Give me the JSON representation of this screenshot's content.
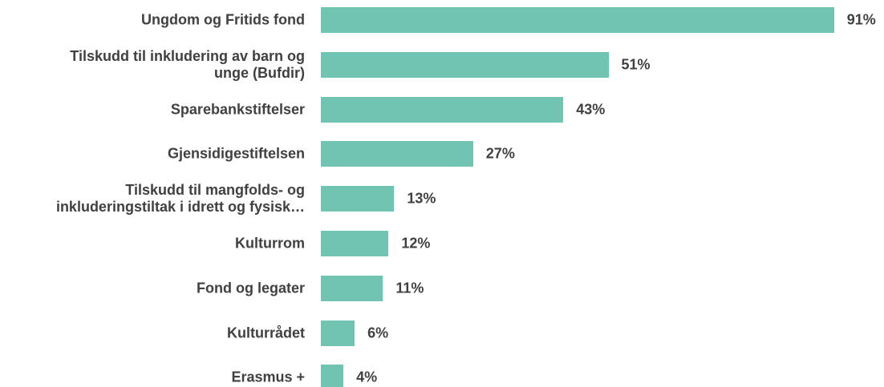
{
  "chart_data": {
    "type": "bar",
    "orientation": "horizontal",
    "color": "#72c4b2",
    "categories": [
      "Ungdom og Fritids fond",
      "Tilskudd til inkludering av barn og\nunge (Bufdir)",
      "Sparebankstiftelser",
      "Gjensidigestiftelsen",
      "Tilskudd til mangfolds- og\ninkluderingstiltak i idrett og fysisk…",
      "Kulturrom",
      "Fond og legater",
      "Kulturrådet",
      "Erasmus +"
    ],
    "values": [
      91,
      51,
      43,
      27,
      13,
      12,
      11,
      6,
      4
    ],
    "value_labels": [
      "91%",
      "51%",
      "43%",
      "27%",
      "13%",
      "12%",
      "11%",
      "6%",
      "4%"
    ]
  }
}
